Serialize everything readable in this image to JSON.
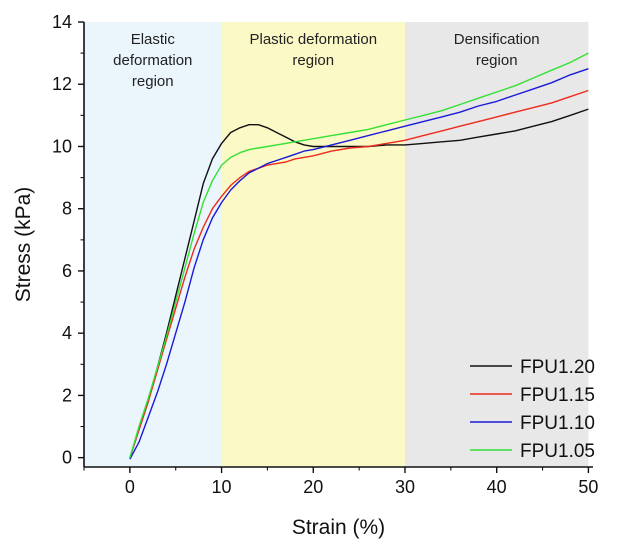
{
  "chart_data": {
    "type": "line",
    "xlabel": "Strain (%)",
    "ylabel": "Stress (kPa)",
    "xlim": [
      -5,
      50.5
    ],
    "ylim": [
      -0.3,
      14
    ],
    "xticks": [
      0,
      10,
      20,
      30,
      40,
      50
    ],
    "yticks": [
      0,
      2,
      4,
      6,
      8,
      10,
      12,
      14
    ],
    "grid": false,
    "legend_position": "bottom-right",
    "regions": [
      {
        "label_lines": [
          "Elastic",
          "deformation",
          "region"
        ],
        "x": [
          -5,
          10
        ],
        "color": "#eaf5fc"
      },
      {
        "label_lines": [
          "Plastic deformation",
          "region"
        ],
        "x": [
          10,
          30
        ],
        "color": "#fbf9c6"
      },
      {
        "label_lines": [
          "Densification",
          "region"
        ],
        "x": [
          30,
          50
        ],
        "color": "#e8e8e8"
      }
    ],
    "series": [
      {
        "name": "FPU1.20",
        "color": "#111111",
        "x": [
          0,
          1,
          2,
          3,
          4,
          5,
          6,
          7,
          8,
          9,
          10,
          11,
          12,
          13,
          14,
          15,
          16,
          17,
          18,
          19,
          20,
          22,
          24,
          26,
          28,
          30,
          32,
          34,
          36,
          38,
          40,
          42,
          44,
          46,
          48,
          50
        ],
        "y": [
          0,
          0.9,
          1.8,
          2.9,
          4.0,
          5.2,
          6.4,
          7.6,
          8.8,
          9.6,
          10.1,
          10.45,
          10.6,
          10.7,
          10.7,
          10.6,
          10.45,
          10.3,
          10.15,
          10.05,
          10.0,
          10.0,
          10.0,
          10.0,
          10.05,
          10.05,
          10.1,
          10.15,
          10.2,
          10.3,
          10.4,
          10.5,
          10.65,
          10.8,
          11.0,
          11.2
        ]
      },
      {
        "name": "FPU1.15",
        "color": "#ee2a1e",
        "x": [
          0,
          1,
          2,
          3,
          4,
          5,
          6,
          7,
          8,
          9,
          10,
          11,
          12,
          13,
          14,
          15,
          16,
          17,
          18,
          19,
          20,
          22,
          24,
          26,
          28,
          30,
          32,
          34,
          36,
          38,
          40,
          42,
          44,
          46,
          48,
          50
        ],
        "y": [
          0,
          0.9,
          1.8,
          2.8,
          3.8,
          4.8,
          5.8,
          6.7,
          7.4,
          8.0,
          8.4,
          8.75,
          9.0,
          9.2,
          9.3,
          9.4,
          9.45,
          9.5,
          9.6,
          9.65,
          9.7,
          9.85,
          9.95,
          10.0,
          10.1,
          10.2,
          10.35,
          10.5,
          10.65,
          10.8,
          10.95,
          11.1,
          11.25,
          11.4,
          11.6,
          11.8
        ]
      },
      {
        "name": "FPU1.10",
        "color": "#1a1ad8",
        "x": [
          0,
          1,
          2,
          3,
          4,
          5,
          6,
          7,
          8,
          9,
          10,
          11,
          12,
          13,
          14,
          15,
          16,
          17,
          18,
          19,
          20,
          22,
          24,
          26,
          28,
          30,
          32,
          34,
          36,
          38,
          40,
          42,
          44,
          46,
          48,
          50
        ],
        "y": [
          -0.05,
          0.5,
          1.3,
          2.1,
          3.0,
          4.0,
          5.0,
          6.1,
          7.0,
          7.7,
          8.2,
          8.6,
          8.9,
          9.15,
          9.3,
          9.45,
          9.55,
          9.65,
          9.75,
          9.85,
          9.9,
          10.05,
          10.2,
          10.35,
          10.5,
          10.65,
          10.8,
          10.95,
          11.1,
          11.3,
          11.45,
          11.65,
          11.85,
          12.05,
          12.3,
          12.5
        ]
      },
      {
        "name": "FPU1.05",
        "color": "#35e035",
        "x": [
          0,
          1,
          2,
          3,
          4,
          5,
          6,
          7,
          8,
          9,
          10,
          11,
          12,
          13,
          14,
          15,
          16,
          17,
          18,
          19,
          20,
          22,
          24,
          26,
          28,
          30,
          32,
          34,
          36,
          38,
          40,
          42,
          44,
          46,
          48,
          50
        ],
        "y": [
          0,
          1.0,
          1.9,
          2.9,
          3.9,
          5.0,
          6.1,
          7.2,
          8.2,
          8.9,
          9.4,
          9.65,
          9.8,
          9.9,
          9.95,
          10.0,
          10.05,
          10.1,
          10.15,
          10.2,
          10.25,
          10.35,
          10.45,
          10.55,
          10.7,
          10.85,
          11.0,
          11.15,
          11.35,
          11.55,
          11.75,
          11.95,
          12.2,
          12.45,
          12.7,
          13.0
        ]
      }
    ]
  }
}
